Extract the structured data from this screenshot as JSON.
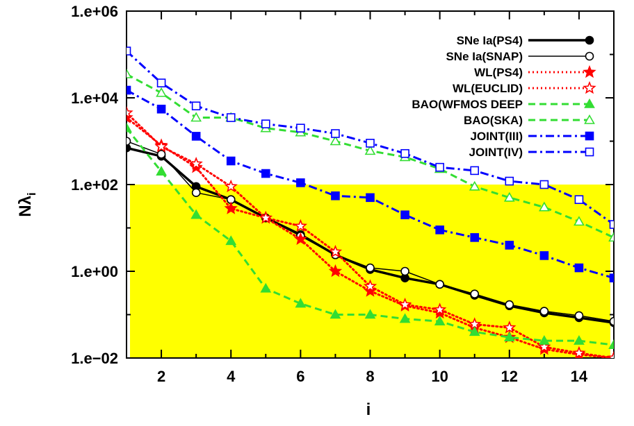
{
  "chart_data": {
    "type": "line",
    "title": "",
    "xlabel": "i",
    "ylabel": "Nλ",
    "ylabel_subscript": "i",
    "xscale": "linear",
    "yscale": "log",
    "xlim": [
      1,
      15
    ],
    "ylim": [
      0.01,
      1000000
    ],
    "xticks": [
      2,
      4,
      6,
      8,
      10,
      12,
      14
    ],
    "xtick_labels": [
      "2",
      "4",
      "6",
      "8",
      "10",
      "12",
      "14"
    ],
    "yticks": [
      0.01,
      1,
      100,
      10000,
      1000000
    ],
    "ytick_labels": [
      "1.e−02",
      "1.e+00",
      "1.e+02",
      "1.e+04",
      "1.e+06"
    ],
    "shaded_region": {
      "color": "#ffff00",
      "x_from": 1.1,
      "x_to": 14.9,
      "y_from": 0.01,
      "y_to": 100
    },
    "legend_position": "top-right",
    "x": [
      1,
      2,
      3,
      4,
      5,
      6,
      7,
      8,
      9,
      10,
      11,
      12,
      13,
      14,
      15
    ],
    "series": [
      {
        "name": "SNe Ia(PS4)",
        "color": "#000000",
        "dash": "solid",
        "width": 3.5,
        "marker": "circle-filled",
        "values": [
          700,
          450,
          90,
          45,
          17,
          7,
          2.4,
          1.1,
          0.7,
          0.5,
          0.28,
          0.16,
          0.11,
          0.085,
          0.065
        ]
      },
      {
        "name": "SNe Ia(SNAP)",
        "color": "#000000",
        "dash": "solid",
        "width": 1.5,
        "marker": "circle-open",
        "values": [
          1000,
          500,
          65,
          45,
          17,
          6.5,
          2.4,
          1.2,
          1.0,
          0.5,
          0.3,
          0.17,
          0.12,
          0.095,
          0.07
        ]
      },
      {
        "name": "WL(PS4)",
        "color": "#ff0000",
        "dash": "dotted",
        "width": 3,
        "marker": "star-filled",
        "values": [
          3500,
          800,
          250,
          28,
          17,
          5.5,
          1.0,
          0.35,
          0.16,
          0.11,
          0.05,
          0.03,
          0.016,
          0.012,
          0.01
        ]
      },
      {
        "name": "WL(EUCLID)",
        "color": "#ff0000",
        "dash": "dotted",
        "width": 3,
        "marker": "star-open",
        "values": [
          4500,
          750,
          300,
          90,
          17,
          11,
          2.8,
          0.45,
          0.17,
          0.13,
          0.06,
          0.05,
          0.018,
          0.013,
          0.01
        ]
      },
      {
        "name": "BAO(WFMOS DEEP",
        "color": "#33dd33",
        "dash": "dashed",
        "width": 3,
        "marker": "triangle-filled",
        "values": [
          2000,
          200,
          20,
          5,
          0.4,
          0.18,
          0.1,
          0.1,
          0.08,
          0.07,
          0.04,
          0.03,
          0.025,
          0.025,
          0.02
        ]
      },
      {
        "name": "BAO(SKA)",
        "color": "#33dd33",
        "dash": "dashed",
        "width": 3,
        "marker": "triangle-open",
        "values": [
          35000,
          13000,
          3500,
          3500,
          2000,
          1600,
          1000,
          600,
          430,
          230,
          90,
          50,
          30,
          14,
          6
        ]
      },
      {
        "name": "JOINT(III)",
        "color": "#0000ff",
        "dash": "dashdot",
        "width": 3,
        "marker": "square-filled",
        "values": [
          15000,
          5500,
          1300,
          350,
          180,
          110,
          55,
          50,
          20,
          9,
          6,
          4,
          2.3,
          1.2,
          0.7
        ]
      },
      {
        "name": "JOINT(IV)",
        "color": "#0000ff",
        "dash": "dashdot",
        "width": 3,
        "marker": "square-open",
        "values": [
          120000,
          22000,
          6500,
          3500,
          2500,
          2000,
          1500,
          900,
          520,
          250,
          210,
          120,
          100,
          45,
          12
        ]
      }
    ]
  }
}
